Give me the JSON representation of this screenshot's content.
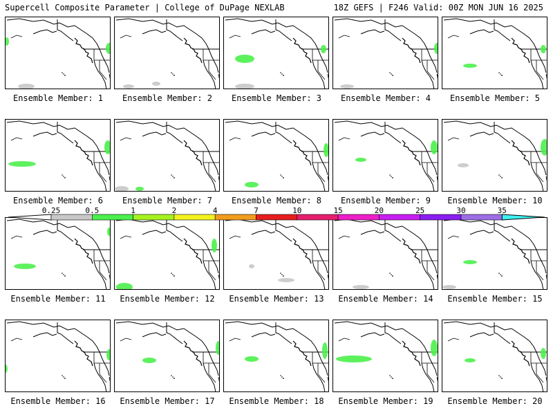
{
  "header": {
    "left": "Supercell Composite Parameter | College of DuPage NEXLAB",
    "right": "18Z GEFS | F246 Valid: 00Z MON JUN 16 2025"
  },
  "members": [
    {
      "label": "Ensemble Member: 1"
    },
    {
      "label": "Ensemble Member: 2"
    },
    {
      "label": "Ensemble Member: 3"
    },
    {
      "label": "Ensemble Member: 4"
    },
    {
      "label": "Ensemble Member: 5"
    },
    {
      "label": "Ensemble Member: 6"
    },
    {
      "label": "Ensemble Member: 7"
    },
    {
      "label": "Ensemble Member: 8"
    },
    {
      "label": "Ensemble Member: 9"
    },
    {
      "label": "Ensemble Member: 10"
    },
    {
      "label": "Ensemble Member: 11"
    },
    {
      "label": "Ensemble Member: 12"
    },
    {
      "label": "Ensemble Member: 13"
    },
    {
      "label": "Ensemble Member: 14"
    },
    {
      "label": "Ensemble Member: 15"
    },
    {
      "label": "Ensemble Member: 16"
    },
    {
      "label": "Ensemble Member: 17"
    },
    {
      "label": "Ensemble Member: 18"
    },
    {
      "label": "Ensemble Member: 19"
    },
    {
      "label": "Ensemble Member: 20"
    }
  ],
  "colorbar": {
    "ticks": [
      "0.25",
      "0.5",
      "1",
      "2",
      "4",
      "7",
      "10",
      "15",
      "20",
      "25",
      "30",
      "35"
    ],
    "colors": [
      "#c8c8c8",
      "#4cf04c",
      "#a6f21e",
      "#f2f21e",
      "#f29c1e",
      "#e61e1e",
      "#e61e6e",
      "#ee1ec8",
      "#c81ef2",
      "#8a1ef2",
      "#9b6ee6",
      "#3cf0f0"
    ]
  }
}
